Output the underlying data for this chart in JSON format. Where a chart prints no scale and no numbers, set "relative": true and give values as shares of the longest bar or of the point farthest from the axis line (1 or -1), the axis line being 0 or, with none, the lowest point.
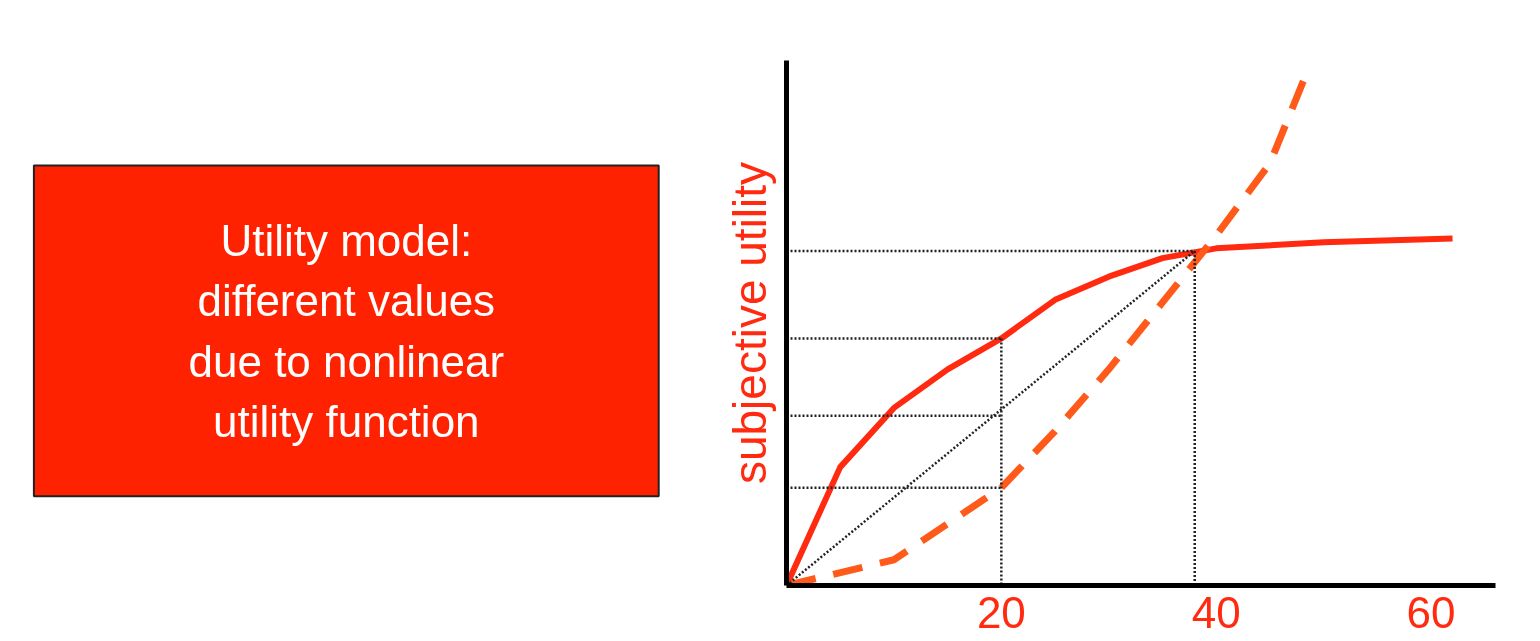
{
  "chart_data": [
    {
      "type": "other",
      "annotations": [
        "Utility model:\ndifferent values\ndue to nonlinear\nutility function"
      ]
    },
    {
      "type": "line",
      "ylabel": "subjective utility",
      "relative": true,
      "xlim": [
        0,
        66
      ],
      "xticks": [
        20,
        40,
        60
      ],
      "grid": false,
      "series": [
        {
          "color": "#ff2a10",
          "line_style": "solid",
          "x": [
            0,
            5,
            10,
            15,
            20,
            25,
            30,
            35,
            40,
            50,
            62
          ],
          "values": [
            0,
            0.23,
            0.345,
            0.42,
            0.48,
            0.555,
            0.6,
            0.636,
            0.655,
            0.667,
            0.674
          ]
        },
        {
          "color": "#ff5a1a",
          "line_style": "dashed",
          "x": [
            0,
            10,
            20,
            25,
            30,
            35,
            40,
            45,
            48.5
          ],
          "values": [
            0,
            0.05,
            0.19,
            0.3,
            0.42,
            0.55,
            0.68,
            0.82,
            1.0
          ]
        },
        {
          "color": "#222222",
          "line_style": "dotted",
          "x": [
            0,
            38
          ],
          "values": [
            0,
            0.65
          ]
        },
        {
          "color": "#222222",
          "line_style": "dotted",
          "x": [
            0,
            38,
            null,
            38,
            38
          ],
          "values": [
            0.65,
            0.65,
            null,
            0.65,
            0
          ]
        },
        {
          "color": "#222222",
          "line_style": "dotted",
          "x": [
            0,
            20,
            null,
            20,
            20
          ],
          "values": [
            0.48,
            0.48,
            null,
            0.48,
            0
          ]
        },
        {
          "color": "#222222",
          "line_style": "dotted",
          "x": [
            0,
            20
          ],
          "values": [
            0.33,
            0.33
          ]
        },
        {
          "color": "#222222",
          "line_style": "dotted",
          "x": [
            0,
            20
          ],
          "values": [
            0.19,
            0.19
          ]
        }
      ]
    }
  ]
}
